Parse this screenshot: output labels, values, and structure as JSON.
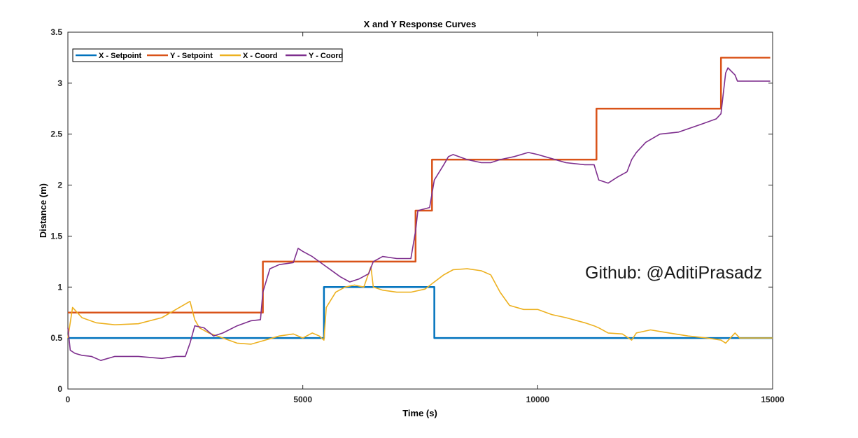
{
  "chart_data": {
    "type": "line",
    "title": "X and Y Response Curves",
    "xlabel": "Time (s)",
    "ylabel": "Distance (m)",
    "xlim": [
      0,
      15000
    ],
    "ylim": [
      0,
      3.5
    ],
    "xticks": [
      0,
      5000,
      10000,
      15000
    ],
    "yticks": [
      0,
      0.5,
      1,
      1.5,
      2,
      2.5,
      3,
      3.5
    ],
    "xtick_labels": [
      "0",
      "5000",
      "10000",
      "15000"
    ],
    "ytick_labels": [
      "0",
      "0.5",
      "1",
      "1.5",
      "2",
      "2.5",
      "3",
      "3.5"
    ],
    "grid": false,
    "legend_position": "top-left",
    "series": [
      {
        "name": "X - Setpoint",
        "color": "#0072BD",
        "style": "step",
        "x": [
          0,
          5450,
          7800,
          15000
        ],
        "y": [
          0.5,
          1.0,
          0.5,
          0.5
        ]
      },
      {
        "name": "Y - Setpoint",
        "color": "#D95319",
        "style": "step",
        "x": [
          0,
          4150,
          7400,
          7750,
          11250,
          13900,
          14950
        ],
        "y": [
          0.75,
          1.25,
          1.75,
          2.25,
          2.75,
          3.25,
          3.25
        ]
      },
      {
        "name": "X - Coord",
        "color": "#EDB120",
        "style": "line",
        "x": [
          0,
          100,
          300,
          600,
          1000,
          1500,
          2000,
          2300,
          2600,
          2700,
          2800,
          3000,
          3300,
          3600,
          3900,
          4200,
          4500,
          4800,
          5000,
          5200,
          5350,
          5450,
          5500,
          5700,
          5900,
          6100,
          6300,
          6450,
          6500,
          6700,
          7000,
          7300,
          7600,
          7800,
          8000,
          8200,
          8500,
          8800,
          9000,
          9200,
          9400,
          9700,
          10000,
          10300,
          10600,
          11000,
          11200,
          11300,
          11500,
          11800,
          12000,
          12100,
          12400,
          12800,
          13200,
          13600,
          13900,
          14000,
          14100,
          14200,
          14300,
          14500,
          15000
        ],
        "y": [
          0.5,
          0.8,
          0.7,
          0.65,
          0.63,
          0.64,
          0.7,
          0.78,
          0.86,
          0.68,
          0.6,
          0.55,
          0.5,
          0.45,
          0.44,
          0.48,
          0.52,
          0.54,
          0.5,
          0.55,
          0.52,
          0.48,
          0.8,
          0.95,
          1.0,
          1.02,
          1.0,
          1.2,
          1.0,
          0.97,
          0.95,
          0.95,
          0.98,
          1.05,
          1.12,
          1.17,
          1.18,
          1.16,
          1.12,
          0.95,
          0.82,
          0.78,
          0.78,
          0.73,
          0.7,
          0.65,
          0.62,
          0.6,
          0.55,
          0.54,
          0.48,
          0.55,
          0.58,
          0.55,
          0.52,
          0.5,
          0.48,
          0.45,
          0.5,
          0.55,
          0.5,
          0.5,
          0.5
        ]
      },
      {
        "name": "Y - Coord",
        "color": "#7E2F8E",
        "style": "line",
        "x": [
          0,
          50,
          150,
          300,
          500,
          700,
          1000,
          1500,
          2000,
          2300,
          2500,
          2600,
          2700,
          2900,
          3100,
          3300,
          3600,
          3900,
          4100,
          4150,
          4300,
          4500,
          4800,
          4900,
          5000,
          5200,
          5500,
          5800,
          6000,
          6200,
          6400,
          6500,
          6700,
          7000,
          7300,
          7400,
          7450,
          7700,
          7800,
          8000,
          8100,
          8200,
          8500,
          8800,
          9000,
          9200,
          9500,
          9800,
          10000,
          10300,
          10600,
          11000,
          11200,
          11300,
          11500,
          11700,
          11900,
          12000,
          12100,
          12300,
          12600,
          13000,
          13500,
          13800,
          13900,
          14000,
          14050,
          14200,
          14250,
          14950
        ],
        "y": [
          0.6,
          0.38,
          0.35,
          0.33,
          0.32,
          0.28,
          0.32,
          0.32,
          0.3,
          0.32,
          0.32,
          0.45,
          0.62,
          0.6,
          0.52,
          0.55,
          0.62,
          0.67,
          0.68,
          0.95,
          1.18,
          1.22,
          1.24,
          1.38,
          1.35,
          1.3,
          1.2,
          1.1,
          1.05,
          1.08,
          1.13,
          1.25,
          1.3,
          1.28,
          1.28,
          1.55,
          1.75,
          1.78,
          2.05,
          2.2,
          2.28,
          2.3,
          2.25,
          2.22,
          2.22,
          2.25,
          2.28,
          2.32,
          2.3,
          2.26,
          2.22,
          2.2,
          2.2,
          2.05,
          2.02,
          2.08,
          2.13,
          2.25,
          2.32,
          2.42,
          2.5,
          2.52,
          2.6,
          2.65,
          2.7,
          3.1,
          3.15,
          3.08,
          3.02,
          3.02
        ]
      }
    ],
    "watermark": "Github: @AditiPrasadz"
  }
}
